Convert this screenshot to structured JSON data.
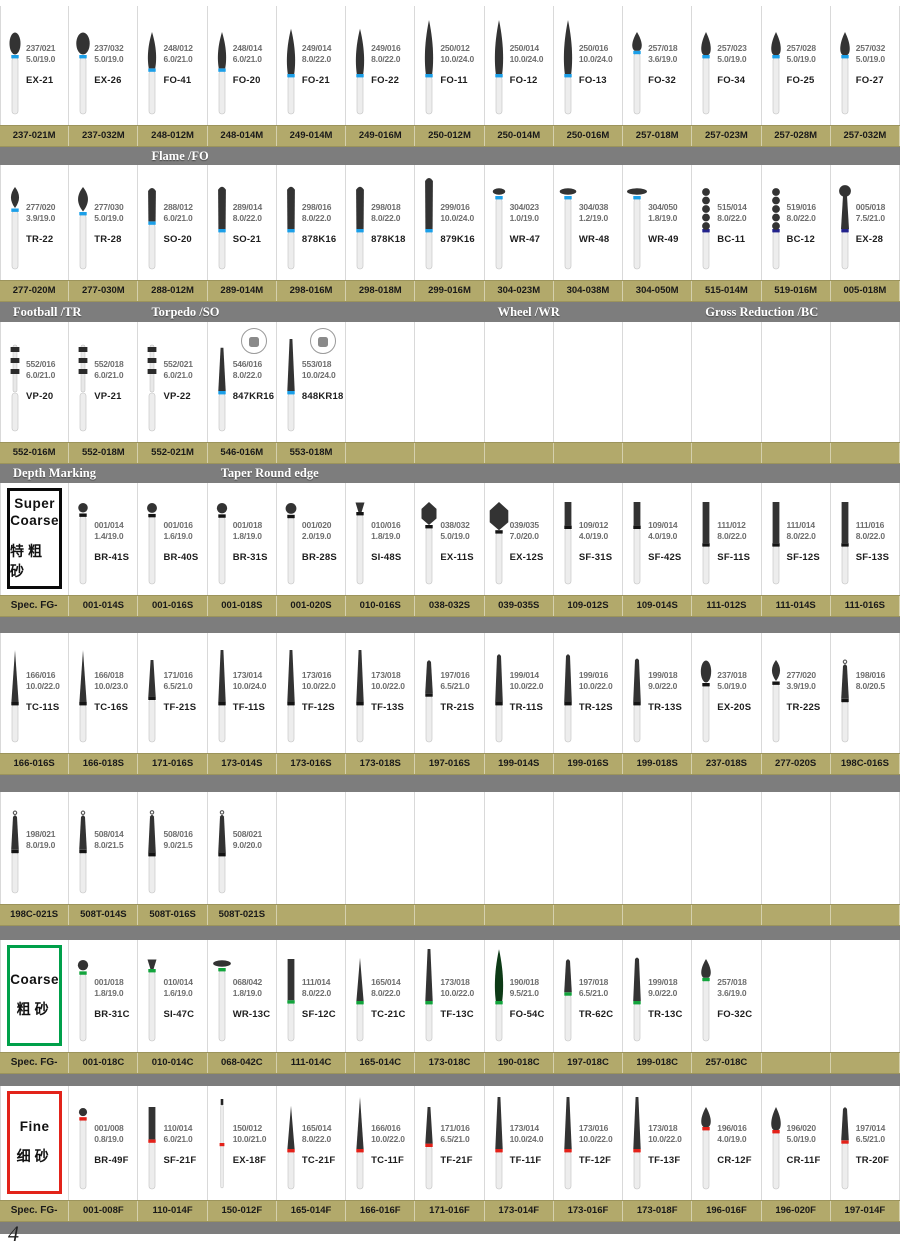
{
  "page": {
    "number": "4"
  },
  "palette": {
    "bar_khaki": "#b2a96b",
    "band_gray": "#7d7d7d",
    "ring_blue": "#1b9fe8",
    "ring_navy": "#22228c",
    "ring_black": "#141414",
    "ring_green": "#12a43c",
    "ring_red": "#e32119",
    "head_dark": "#333333",
    "head_green": "#0d3a16"
  },
  "rows": [
    {
      "id": "r1",
      "ring": "blue",
      "items": [
        {
          "name": "EX-21",
          "spec1": "237/021",
          "spec2": "5.0/19.0",
          "code": "237-021M",
          "shape": "egg"
        },
        {
          "name": "EX-26",
          "spec1": "237/032",
          "spec2": "5.0/19.0",
          "code": "237-032M",
          "shape": "egg"
        },
        {
          "name": "FO-41",
          "spec1": "248/012",
          "spec2": "6.0/21.0",
          "code": "248-012M",
          "shape": "flame"
        },
        {
          "name": "FO-20",
          "spec1": "248/014",
          "spec2": "6.0/21.0",
          "code": "248-014M",
          "shape": "flame"
        },
        {
          "name": "FO-21",
          "spec1": "249/014",
          "spec2": "8.0/22.0",
          "code": "249-014M",
          "shape": "flame"
        },
        {
          "name": "FO-22",
          "spec1": "249/016",
          "spec2": "8.0/22.0",
          "code": "249-016M",
          "shape": "flame"
        },
        {
          "name": "FO-11",
          "spec1": "250/012",
          "spec2": "10.0/24.0",
          "code": "250-012M",
          "shape": "flame"
        },
        {
          "name": "FO-12",
          "spec1": "250/014",
          "spec2": "10.0/24.0",
          "code": "250-014M",
          "shape": "flame"
        },
        {
          "name": "FO-13",
          "spec1": "250/016",
          "spec2": "10.0/24.0",
          "code": "250-016M",
          "shape": "flame"
        },
        {
          "name": "FO-32",
          "spec1": "257/018",
          "spec2": "3.6/19.0",
          "code": "257-018M",
          "shape": "bud"
        },
        {
          "name": "FO-34",
          "spec1": "257/023",
          "spec2": "5.0/19.0",
          "code": "257-023M",
          "shape": "bud"
        },
        {
          "name": "FO-25",
          "spec1": "257/028",
          "spec2": "5.0/19.0",
          "code": "257-028M",
          "shape": "bud"
        },
        {
          "name": "FO-27",
          "spec1": "257/032",
          "spec2": "5.0/19.0",
          "code": "257-032M",
          "shape": "bud"
        }
      ],
      "band_labels": [
        {
          "text": "Flame /FO",
          "col": 3,
          "span": 2
        }
      ]
    },
    {
      "id": "r2",
      "ring": "blue",
      "items": [
        {
          "name": "TR-22",
          "spec1": "277/020",
          "spec2": "3.9/19.0",
          "code": "277-020M",
          "shape": "football"
        },
        {
          "name": "TR-28",
          "spec1": "277/030",
          "spec2": "5.0/19.0",
          "code": "277-030M",
          "shape": "football"
        },
        {
          "name": "SO-20",
          "spec1": "288/012",
          "spec2": "6.0/21.0",
          "code": "288-012M",
          "shape": "torpedo"
        },
        {
          "name": "SO-21",
          "spec1": "289/014",
          "spec2": "8.0/22.0",
          "code": "289-014M",
          "shape": "torpedo"
        },
        {
          "name": "878K16",
          "spec1": "298/016",
          "spec2": "8.0/22.0",
          "code": "298-016M",
          "shape": "torpedo"
        },
        {
          "name": "878K18",
          "spec1": "298/018",
          "spec2": "8.0/22.0",
          "code": "298-018M",
          "shape": "torpedo"
        },
        {
          "name": "879K16",
          "spec1": "299/016",
          "spec2": "10.0/24.0",
          "code": "299-016M",
          "shape": "torpedo"
        },
        {
          "name": "WR-47",
          "spec1": "304/023",
          "spec2": "1.0/19.0",
          "code": "304-023M",
          "shape": "wheel"
        },
        {
          "name": "WR-48",
          "spec1": "304/038",
          "spec2": "1.2/19.0",
          "code": "304-038M",
          "shape": "wheel"
        },
        {
          "name": "WR-49",
          "spec1": "304/050",
          "spec2": "1.8/19.0",
          "code": "304-050M",
          "shape": "wheel"
        },
        {
          "name": "BC-11",
          "spec1": "515/014",
          "spec2": "8.0/22.0",
          "code": "515-014M",
          "shape": "beaded",
          "ring": "navy"
        },
        {
          "name": "BC-12",
          "spec1": "519/016",
          "spec2": "8.0/22.0",
          "code": "519-016M",
          "shape": "beaded",
          "ring": "navy"
        },
        {
          "name": "EX-28",
          "spec1": "005/018",
          "spec2": "7.5/21.0",
          "code": "005-018M",
          "shape": "balltaper",
          "ring": "navy"
        }
      ],
      "band_labels": [
        {
          "text": "Football /TR",
          "col": 1,
          "span": 2
        },
        {
          "text": "Torpedo /SO",
          "col": 3,
          "span": 2
        },
        {
          "text": "Wheel /WR",
          "col": 8,
          "span": 2
        },
        {
          "text": "Gross Reduction /BC",
          "col": 11,
          "span": 3
        }
      ]
    },
    {
      "id": "r3",
      "ring": "blue",
      "items": [
        {
          "name": "VP-20",
          "spec1": "552/016",
          "spec2": "6.0/21.0",
          "code": "552-016M",
          "shape": "depthmark"
        },
        {
          "name": "VP-21",
          "spec1": "552/018",
          "spec2": "6.0/21.0",
          "code": "552-018M",
          "shape": "depthmark"
        },
        {
          "name": "VP-22",
          "spec1": "552/021",
          "spec2": "6.0/21.0",
          "code": "552-021M",
          "shape": "depthmark"
        },
        {
          "name": "847KR16",
          "spec1": "546/016",
          "spec2": "8.0/22.0",
          "code": "546-016M",
          "shape": "taperflat",
          "inset": true
        },
        {
          "name": "848KR18",
          "spec1": "553/018",
          "spec2": "10.0/24.0",
          "code": "553-018M",
          "shape": "taperflat",
          "inset": true
        }
      ],
      "band_labels": [
        {
          "text": "Depth Marking",
          "col": 1,
          "span": 2
        },
        {
          "text": "Taper Round edge",
          "col": 4,
          "span": 3
        }
      ]
    },
    {
      "id": "r4",
      "ring": "black",
      "label_col": {
        "en": "Super Coarse",
        "cn": "特粗砂",
        "border": "#0a0a0a",
        "footer": "Spec. FG-"
      },
      "items": [
        {
          "name": "BR-41S",
          "spec1": "001/014",
          "spec2": "1.4/19.0",
          "code": "001-014S",
          "shape": "ball"
        },
        {
          "name": "BR-40S",
          "spec1": "001/016",
          "spec2": "1.6/19.0",
          "code": "001-016S",
          "shape": "ball"
        },
        {
          "name": "BR-31S",
          "spec1": "001/018",
          "spec2": "1.8/19.0",
          "code": "001-018S",
          "shape": "ball"
        },
        {
          "name": "BR-28S",
          "spec1": "001/020",
          "spec2": "2.0/19.0",
          "code": "001-020S",
          "shape": "ball"
        },
        {
          "name": "SI-48S",
          "spec1": "010/016",
          "spec2": "1.8/19.0",
          "code": "010-016S",
          "shape": "invcone"
        },
        {
          "name": "EX-11S",
          "spec1": "038/032",
          "spec2": "5.0/19.0",
          "code": "038-032S",
          "shape": "barrel"
        },
        {
          "name": "EX-12S",
          "spec1": "039/035",
          "spec2": "7.0/20.0",
          "code": "039-035S",
          "shape": "barrel"
        },
        {
          "name": "SF-31S",
          "spec1": "109/012",
          "spec2": "4.0/19.0",
          "code": "109-012S",
          "shape": "cylinder"
        },
        {
          "name": "SF-42S",
          "spec1": "109/014",
          "spec2": "4.0/19.0",
          "code": "109-014S",
          "shape": "cylinder"
        },
        {
          "name": "SF-11S",
          "spec1": "111/012",
          "spec2": "8.0/22.0",
          "code": "111-012S",
          "shape": "cylinder"
        },
        {
          "name": "SF-12S",
          "spec1": "111/014",
          "spec2": "8.0/22.0",
          "code": "111-014S",
          "shape": "cylinder"
        },
        {
          "name": "SF-13S",
          "spec1": "111/016",
          "spec2": "8.0/22.0",
          "code": "111-016S",
          "shape": "cylinder"
        }
      ],
      "band_labels": []
    },
    {
      "id": "r5",
      "ring": "black",
      "items": [
        {
          "name": "TC-11S",
          "spec1": "166/016",
          "spec2": "10.0/22.0",
          "code": "166-016S",
          "shape": "taperpoint"
        },
        {
          "name": "TC-16S",
          "spec1": "166/018",
          "spec2": "10.0/23.0",
          "code": "166-018S",
          "shape": "taperpoint"
        },
        {
          "name": "TF-21S",
          "spec1": "171/016",
          "spec2": "6.5/21.0",
          "code": "171-016S",
          "shape": "taperflat"
        },
        {
          "name": "TF-11S",
          "spec1": "173/014",
          "spec2": "10.0/24.0",
          "code": "173-014S",
          "shape": "taperflat"
        },
        {
          "name": "TF-12S",
          "spec1": "173/016",
          "spec2": "10.0/22.0",
          "code": "173-016S",
          "shape": "taperflat"
        },
        {
          "name": "TF-13S",
          "spec1": "173/018",
          "spec2": "10.0/22.0",
          "code": "173-018S",
          "shape": "taperflat"
        },
        {
          "name": "TR-21S",
          "spec1": "197/016",
          "spec2": "6.5/21.0",
          "code": "197-016S",
          "shape": "taperround"
        },
        {
          "name": "TR-11S",
          "spec1": "199/014",
          "spec2": "10.0/22.0",
          "code": "199-014S",
          "shape": "taperround"
        },
        {
          "name": "TR-12S",
          "spec1": "199/016",
          "spec2": "10.0/22.0",
          "code": "199-016S",
          "shape": "taperround"
        },
        {
          "name": "TR-13S",
          "spec1": "199/018",
          "spec2": "9.0/22.0",
          "code": "199-018S",
          "shape": "taperround"
        },
        {
          "name": "EX-20S",
          "spec1": "237/018",
          "spec2": "5.0/19.0",
          "code": "237-018S",
          "shape": "egg"
        },
        {
          "name": "TR-22S",
          "spec1": "277/020",
          "spec2": "3.9/19.0",
          "code": "277-020S",
          "shape": "football"
        },
        {
          "name": "",
          "spec1": "198/016",
          "spec2": "8.0/20.5",
          "code": "198C-016S",
          "shape": "pintaper"
        }
      ],
      "band_labels": []
    },
    {
      "id": "r6",
      "ring": "black",
      "items": [
        {
          "name": "",
          "spec1": "198/021",
          "spec2": "8.0/19.0",
          "code": "198C-021S",
          "shape": "pintaper"
        },
        {
          "name": "",
          "spec1": "508/014",
          "spec2": "8.0/21.5",
          "code": "508T-014S",
          "shape": "pintaper"
        },
        {
          "name": "",
          "spec1": "508/016",
          "spec2": "9.0/21.5",
          "code": "508T-016S",
          "shape": "pintaper"
        },
        {
          "name": "",
          "spec1": "508/021",
          "spec2": "9.0/20.0",
          "code": "508T-021S",
          "shape": "pintaper"
        }
      ],
      "band_labels": []
    },
    {
      "id": "r7",
      "ring": "green",
      "label_col": {
        "en": "Coarse",
        "cn": "粗砂",
        "border": "#00a04a",
        "footer": "Spec. FG-"
      },
      "items": [
        {
          "name": "BR-31C",
          "spec1": "001/018",
          "spec2": "1.8/19.0",
          "code": "001-018C",
          "shape": "ball"
        },
        {
          "name": "SI-47C",
          "spec1": "010/014",
          "spec2": "1.6/19.0",
          "code": "010-014C",
          "shape": "invcone"
        },
        {
          "name": "WR-13C",
          "spec1": "068/042",
          "spec2": "1.8/19.0",
          "code": "068-042C",
          "shape": "wheel"
        },
        {
          "name": "SF-12C",
          "spec1": "111/014",
          "spec2": "8.0/22.0",
          "code": "111-014C",
          "shape": "cylinder"
        },
        {
          "name": "TC-21C",
          "spec1": "165/014",
          "spec2": "8.0/22.0",
          "code": "165-014C",
          "shape": "taperpoint"
        },
        {
          "name": "TF-13C",
          "spec1": "173/018",
          "spec2": "10.0/22.0",
          "code": "173-018C",
          "shape": "taperflat"
        },
        {
          "name": "FO-54C",
          "spec1": "190/018",
          "spec2": "9.5/21.0",
          "code": "190-018C",
          "shape": "flame",
          "head": "green"
        },
        {
          "name": "TR-62C",
          "spec1": "197/018",
          "spec2": "6.5/21.0",
          "code": "197-018C",
          "shape": "taperround"
        },
        {
          "name": "TR-13C",
          "spec1": "199/018",
          "spec2": "9.0/22.0",
          "code": "199-018C",
          "shape": "taperround"
        },
        {
          "name": "FO-32C",
          "spec1": "257/018",
          "spec2": "3.6/19.0",
          "code": "257-018C",
          "shape": "bud"
        }
      ],
      "band_labels": []
    },
    {
      "id": "r8",
      "ring": "red",
      "label_col": {
        "en": "Fine",
        "cn": "细砂",
        "border": "#e2231a",
        "footer": "Spec. FG-"
      },
      "items": [
        {
          "name": "BR-49F",
          "spec1": "001/008",
          "spec2": "0.8/19.0",
          "code": "001-008F",
          "shape": "ball"
        },
        {
          "name": "SF-21F",
          "spec1": "110/014",
          "spec2": "6.0/21.0",
          "code": "110-014F",
          "shape": "cylinder"
        },
        {
          "name": "EX-18F",
          "spec1": "150/012",
          "spec2": "10.0/21.0",
          "code": "150-012F",
          "shape": "thin"
        },
        {
          "name": "TC-21F",
          "spec1": "165/014",
          "spec2": "8.0/22.0",
          "code": "165-014F",
          "shape": "taperpoint"
        },
        {
          "name": "TC-11F",
          "spec1": "166/016",
          "spec2": "10.0/22.0",
          "code": "166-016F",
          "shape": "taperpoint"
        },
        {
          "name": "TF-21F",
          "spec1": "171/016",
          "spec2": "6.5/21.0",
          "code": "171-016F",
          "shape": "taperflat"
        },
        {
          "name": "TF-11F",
          "spec1": "173/014",
          "spec2": "10.0/24.0",
          "code": "173-014F",
          "shape": "taperflat"
        },
        {
          "name": "TF-12F",
          "spec1": "173/016",
          "spec2": "10.0/22.0",
          "code": "173-016F",
          "shape": "taperflat"
        },
        {
          "name": "TF-13F",
          "spec1": "173/018",
          "spec2": "10.0/22.0",
          "code": "173-018F",
          "shape": "taperflat"
        },
        {
          "name": "CR-12F",
          "spec1": "196/016",
          "spec2": "4.0/19.0",
          "code": "196-016F",
          "shape": "bud"
        },
        {
          "name": "CR-11F",
          "spec1": "196/020",
          "spec2": "5.0/19.0",
          "code": "196-020F",
          "shape": "bud"
        },
        {
          "name": "TR-20F",
          "spec1": "197/014",
          "spec2": "6.5/21.0",
          "code": "197-014F",
          "shape": "taperround"
        }
      ],
      "band_labels": []
    }
  ]
}
